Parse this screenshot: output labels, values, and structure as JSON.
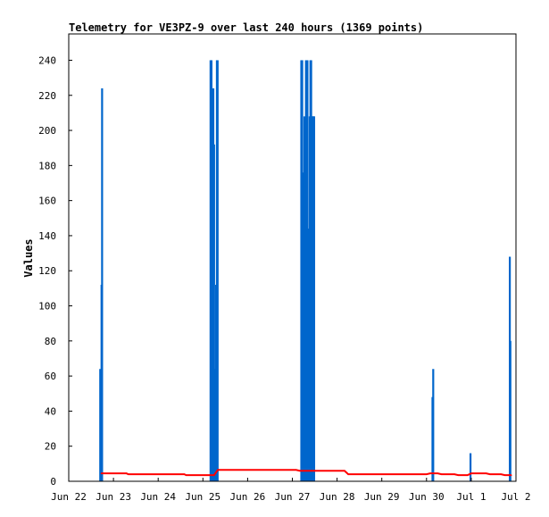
{
  "chart_data": {
    "type": "bar",
    "title": "Telemetry for VE3PZ-9 over last 240 hours (1369 points)",
    "xlabel": "",
    "ylabel": "Values",
    "ylim": [
      0,
      255
    ],
    "xlim": [
      0,
      240
    ],
    "x_ticks": [
      {
        "label": "Jun 22",
        "x": 0
      },
      {
        "label": "Jun 23",
        "x": 24
      },
      {
        "label": "Jun 24",
        "x": 48
      },
      {
        "label": "Jun 25",
        "x": 72
      },
      {
        "label": "Jun 26",
        "x": 96
      },
      {
        "label": "Jun 27",
        "x": 120
      },
      {
        "label": "Jun 28",
        "x": 144
      },
      {
        "label": "Jun 29",
        "x": 168
      },
      {
        "label": "Jun 30",
        "x": 192
      },
      {
        "label": "Jul 1",
        "x": 216
      },
      {
        "label": "Jul 2",
        "x": 240
      }
    ],
    "y_ticks": [
      0,
      20,
      40,
      60,
      80,
      100,
      120,
      140,
      160,
      180,
      200,
      220,
      240
    ],
    "grid": false,
    "legend": "none",
    "colors": {
      "bars": "#0066cc",
      "line": "#ff0000",
      "axis": "#000000",
      "background": "#ffffff"
    },
    "series": [
      {
        "type": "bar",
        "x": [
          16.9,
          17.6,
          17.9,
          76.1,
          76.6,
          77.1,
          77.6,
          78.0,
          78.4,
          79.1,
          79.5,
          79.9,
          124.8,
          125.3,
          125.7,
          126.1,
          126.5,
          126.9,
          127.3,
          127.7,
          128.1,
          128.5,
          128.9,
          129.3,
          129.7,
          130.1,
          130.5,
          130.9,
          131.3,
          131.7,
          195.2,
          195.6,
          215.6,
          236.7,
          237.0
        ],
        "values": [
          64,
          112,
          224,
          240,
          240,
          176,
          224,
          192,
          64,
          112,
          240,
          240,
          240,
          240,
          176,
          128,
          208,
          120,
          240,
          128,
          240,
          144,
          144,
          208,
          240,
          240,
          208,
          208,
          208,
          208,
          48,
          64,
          16,
          128,
          80
        ]
      },
      {
        "type": "line",
        "x": [
          17.5,
          31,
          32,
          62,
          63,
          78,
          80,
          122,
          124,
          148,
          150,
          192,
          194,
          198,
          200,
          207,
          209,
          214,
          216,
          224,
          226,
          232,
          234,
          237.5
        ],
        "values": [
          4.5,
          4.5,
          4,
          4,
          3.5,
          3.5,
          6.5,
          6.5,
          6,
          6,
          4,
          4,
          4.5,
          4.5,
          4,
          4,
          3.5,
          3.5,
          4.5,
          4.5,
          4,
          4,
          3.5,
          3.5
        ]
      }
    ]
  }
}
